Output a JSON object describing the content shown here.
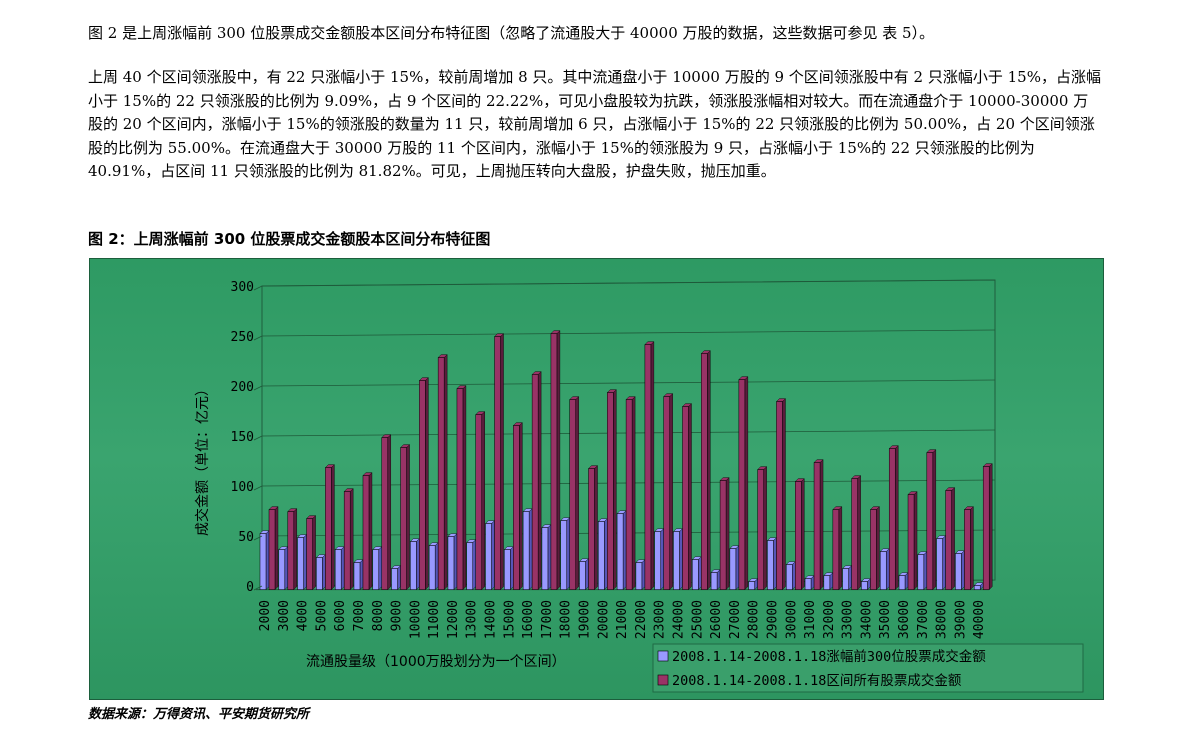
{
  "paragraphs": [
    "图 2 是上周涨幅前 300 位股票成交金额股本区间分布特征图（忽略了流通股大于 40000 万股的数据，这些数据可参见 表 5）。",
    "上周 40 个区间领涨股中，有 22 只涨幅小于 15%，较前周增加 8 只。其中流通盘小于 10000 万股的 9 个区间领涨股中有 2 只涨幅小于 15%，占涨幅小于 15%的 22 只领涨股的比例为 9.09%，占 9 个区间的 22.22%，可见小盘股较为抗跌，领涨股涨幅相对较大。而在流通盘介于 10000-30000 万股的 20 个区间内，涨幅小于 15%的领涨股的数量为 11 只，较前周增加 6 只，占涨幅小于 15%的 22 只领涨股的比例为 50.00%，占 20 个区间领涨股的比例为 55.00%。在流通盘大于 30000 万股的 11 个区间内，涨幅小于 15%的领涨股为 9 只，占涨幅小于 15%的 22 只领涨股的比例为 40.91%，占区间 11 只领涨股的比例为 81.82%。可见，上周抛压转向大盘股，护盘失败，抛压加重。"
  ],
  "figure_title": "图 2：上周涨幅前 300 位股票成交金额股本区间分布特征图",
  "source": "数据来源：万得资讯、平安期货研究所",
  "colors": {
    "series1": "#9999ff",
    "series1_dark": "#5656b8",
    "series2": "#993366",
    "series2_dark": "#5a1d3c",
    "background": "#2f9a64"
  },
  "chart_data": {
    "type": "bar",
    "title": "",
    "xlabel": "流通股量级（1000万股划分为一个区间）",
    "ylabel": "成交金额（单位：亿元）",
    "ylim": [
      0,
      300
    ],
    "yticks": [
      0,
      50,
      100,
      150,
      200,
      250,
      300
    ],
    "grid": true,
    "legend_position": "bottom-right",
    "categories": [
      "2000",
      "3000",
      "4000",
      "5000",
      "6000",
      "7000",
      "8000",
      "9000",
      "10000",
      "11000",
      "12000",
      "13000",
      "14000",
      "15000",
      "16000",
      "17000",
      "18000",
      "19000",
      "20000",
      "21000",
      "22000",
      "23000",
      "24000",
      "25000",
      "26000",
      "27000",
      "28000",
      "29000",
      "30000",
      "31000",
      "32000",
      "33000",
      "34000",
      "35000",
      "36000",
      "37000",
      "38000",
      "39000",
      "40000"
    ],
    "series": [
      {
        "name": "2008.1.14-2008.1.18涨幅前300位股票成交金额",
        "values": [
          56,
          40,
          52,
          32,
          40,
          27,
          40,
          21,
          48,
          44,
          53,
          47,
          66,
          40,
          78,
          62,
          69,
          28,
          68,
          76,
          27,
          58,
          58,
          30,
          17,
          41,
          8,
          49,
          25,
          11,
          14,
          21,
          8,
          38,
          14,
          35,
          51,
          36,
          4
        ]
      },
      {
        "name": "2008.1.14-2008.1.18区间所有股票成交金额",
        "values": [
          80,
          78,
          71,
          122,
          98,
          114,
          152,
          142,
          209,
          232,
          201,
          175,
          253,
          164,
          215,
          256,
          190,
          121,
          197,
          190,
          245,
          193,
          183,
          236,
          109,
          210,
          120,
          188,
          108,
          127,
          80,
          111,
          80,
          141,
          95,
          137,
          99,
          80,
          123
        ]
      }
    ]
  }
}
